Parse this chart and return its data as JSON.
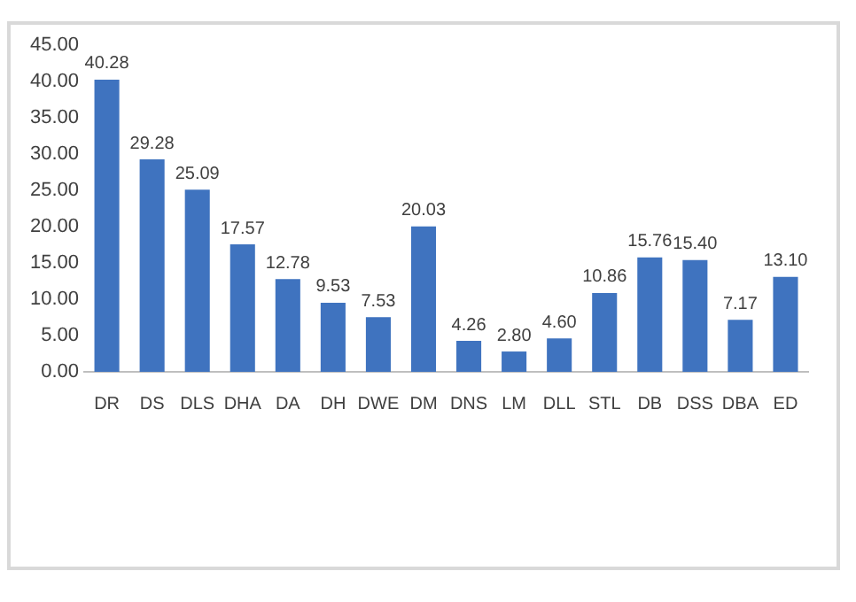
{
  "chart_data": {
    "type": "bar",
    "categories": [
      "DR",
      "DS",
      "DLS",
      "DHA",
      "DA",
      "DH",
      "DWE",
      "DM",
      "DNS",
      "LM",
      "DLL",
      "STL",
      "DB",
      "DSS",
      "DBA",
      "ED"
    ],
    "values": [
      40.28,
      29.28,
      25.09,
      17.57,
      12.78,
      9.53,
      7.53,
      20.03,
      4.26,
      2.8,
      4.6,
      10.86,
      15.76,
      15.4,
      7.17,
      13.1
    ],
    "value_labels": [
      "40.28",
      "29.28",
      "25.09",
      "17.57",
      "12.78",
      "9.53",
      "7.53",
      "20.03",
      "4.26",
      "2.80",
      "4.60",
      "10.86",
      "15.76",
      "15.40",
      "7.17",
      "13.10"
    ],
    "color": "#3f73bf",
    "ylim": [
      0,
      45
    ],
    "yticks": [
      {
        "value": 0,
        "label": "0.00"
      },
      {
        "value": 5,
        "label": "5.00"
      },
      {
        "value": 10,
        "label": "10.00"
      },
      {
        "value": 15,
        "label": "15.00"
      },
      {
        "value": 20,
        "label": "20.00"
      },
      {
        "value": 25,
        "label": "25.00"
      },
      {
        "value": 30,
        "label": "30.00"
      },
      {
        "value": 35,
        "label": "35.00"
      },
      {
        "value": 40,
        "label": "40.00"
      },
      {
        "value": 45,
        "label": "45.00"
      }
    ],
    "grid": false,
    "legend": false
  }
}
